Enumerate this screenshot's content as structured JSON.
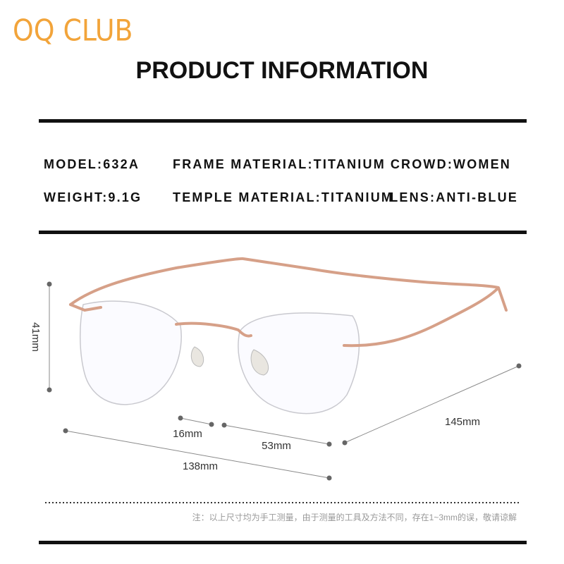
{
  "brand": "OQ CLUB",
  "title": "PRODUCT INFORMATION",
  "specs": [
    [
      "MODEL:632A",
      "FRAME MATERIAL:TITANIUM",
      "CROWD:WOMEN"
    ],
    [
      "WEIGHT:9.1G",
      "TEMPLE MATERIAL:TITANIUM",
      "LENS:ANTI-BLUE"
    ]
  ],
  "dimensions": {
    "lens_height": "41mm",
    "bridge": "16mm",
    "lens_width": "53mm",
    "frame_width": "138mm",
    "temple_length": "145mm"
  },
  "note": "注：以上尺寸均为手工测量，由于测量的工具及方法不同，存在1~3mm的误，敬请谅解"
}
